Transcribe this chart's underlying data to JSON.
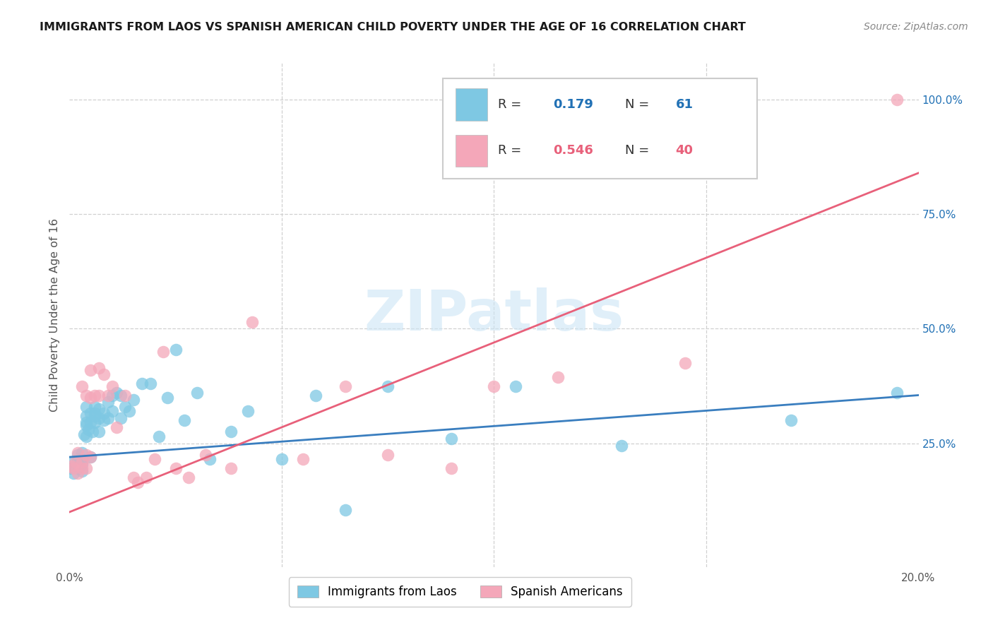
{
  "title": "IMMIGRANTS FROM LAOS VS SPANISH AMERICAN CHILD POVERTY UNDER THE AGE OF 16 CORRELATION CHART",
  "source": "Source: ZipAtlas.com",
  "ylabel": "Child Poverty Under the Age of 16",
  "xlim": [
    0.0,
    0.2
  ],
  "ylim": [
    -0.02,
    1.08
  ],
  "yticks_right": [
    0.25,
    0.5,
    0.75,
    1.0
  ],
  "ytick_right_labels": [
    "25.0%",
    "50.0%",
    "75.0%",
    "100.0%"
  ],
  "blue_color": "#7ec8e3",
  "pink_color": "#f4a7b9",
  "blue_line_color": "#3a7ebf",
  "pink_line_color": "#e8607a",
  "blue_label": "Immigrants from Laos",
  "pink_label": "Spanish Americans",
  "R_blue": "0.179",
  "N_blue": "61",
  "R_pink": "0.546",
  "N_pink": "40",
  "watermark": "ZIPatlas",
  "blue_scatter_x": [
    0.0005,
    0.001,
    0.001,
    0.0015,
    0.002,
    0.002,
    0.002,
    0.0025,
    0.003,
    0.003,
    0.003,
    0.003,
    0.0035,
    0.004,
    0.004,
    0.004,
    0.004,
    0.004,
    0.0045,
    0.005,
    0.005,
    0.005,
    0.0055,
    0.006,
    0.006,
    0.006,
    0.006,
    0.007,
    0.007,
    0.007,
    0.008,
    0.008,
    0.009,
    0.009,
    0.01,
    0.01,
    0.011,
    0.012,
    0.012,
    0.013,
    0.014,
    0.015,
    0.017,
    0.019,
    0.021,
    0.023,
    0.025,
    0.027,
    0.03,
    0.033,
    0.038,
    0.042,
    0.05,
    0.058,
    0.065,
    0.075,
    0.09,
    0.105,
    0.13,
    0.17,
    0.195
  ],
  "blue_scatter_y": [
    0.195,
    0.185,
    0.21,
    0.2,
    0.195,
    0.215,
    0.225,
    0.2,
    0.19,
    0.215,
    0.23,
    0.205,
    0.27,
    0.265,
    0.29,
    0.31,
    0.33,
    0.295,
    0.28,
    0.295,
    0.315,
    0.22,
    0.275,
    0.315,
    0.31,
    0.33,
    0.295,
    0.305,
    0.325,
    0.275,
    0.3,
    0.315,
    0.34,
    0.305,
    0.355,
    0.32,
    0.36,
    0.305,
    0.355,
    0.33,
    0.32,
    0.345,
    0.38,
    0.38,
    0.265,
    0.35,
    0.455,
    0.3,
    0.36,
    0.215,
    0.275,
    0.32,
    0.215,
    0.355,
    0.105,
    0.375,
    0.26,
    0.375,
    0.245,
    0.3,
    0.36
  ],
  "pink_scatter_x": [
    0.0005,
    0.001,
    0.0015,
    0.002,
    0.002,
    0.003,
    0.003,
    0.003,
    0.004,
    0.004,
    0.004,
    0.005,
    0.005,
    0.005,
    0.006,
    0.007,
    0.007,
    0.008,
    0.009,
    0.01,
    0.011,
    0.013,
    0.015,
    0.016,
    0.018,
    0.02,
    0.022,
    0.025,
    0.028,
    0.032,
    0.038,
    0.043,
    0.055,
    0.065,
    0.075,
    0.09,
    0.1,
    0.115,
    0.145,
    0.195
  ],
  "pink_scatter_y": [
    0.2,
    0.195,
    0.21,
    0.185,
    0.23,
    0.195,
    0.21,
    0.375,
    0.225,
    0.195,
    0.355,
    0.41,
    0.35,
    0.22,
    0.355,
    0.415,
    0.355,
    0.4,
    0.355,
    0.375,
    0.285,
    0.355,
    0.175,
    0.165,
    0.175,
    0.215,
    0.45,
    0.195,
    0.175,
    0.225,
    0.195,
    0.515,
    0.215,
    0.375,
    0.225,
    0.195,
    0.375,
    0.395,
    0.425,
    1.0
  ],
  "blue_trendline": [
    0.22,
    0.355
  ],
  "pink_trendline": [
    0.1,
    0.84
  ]
}
